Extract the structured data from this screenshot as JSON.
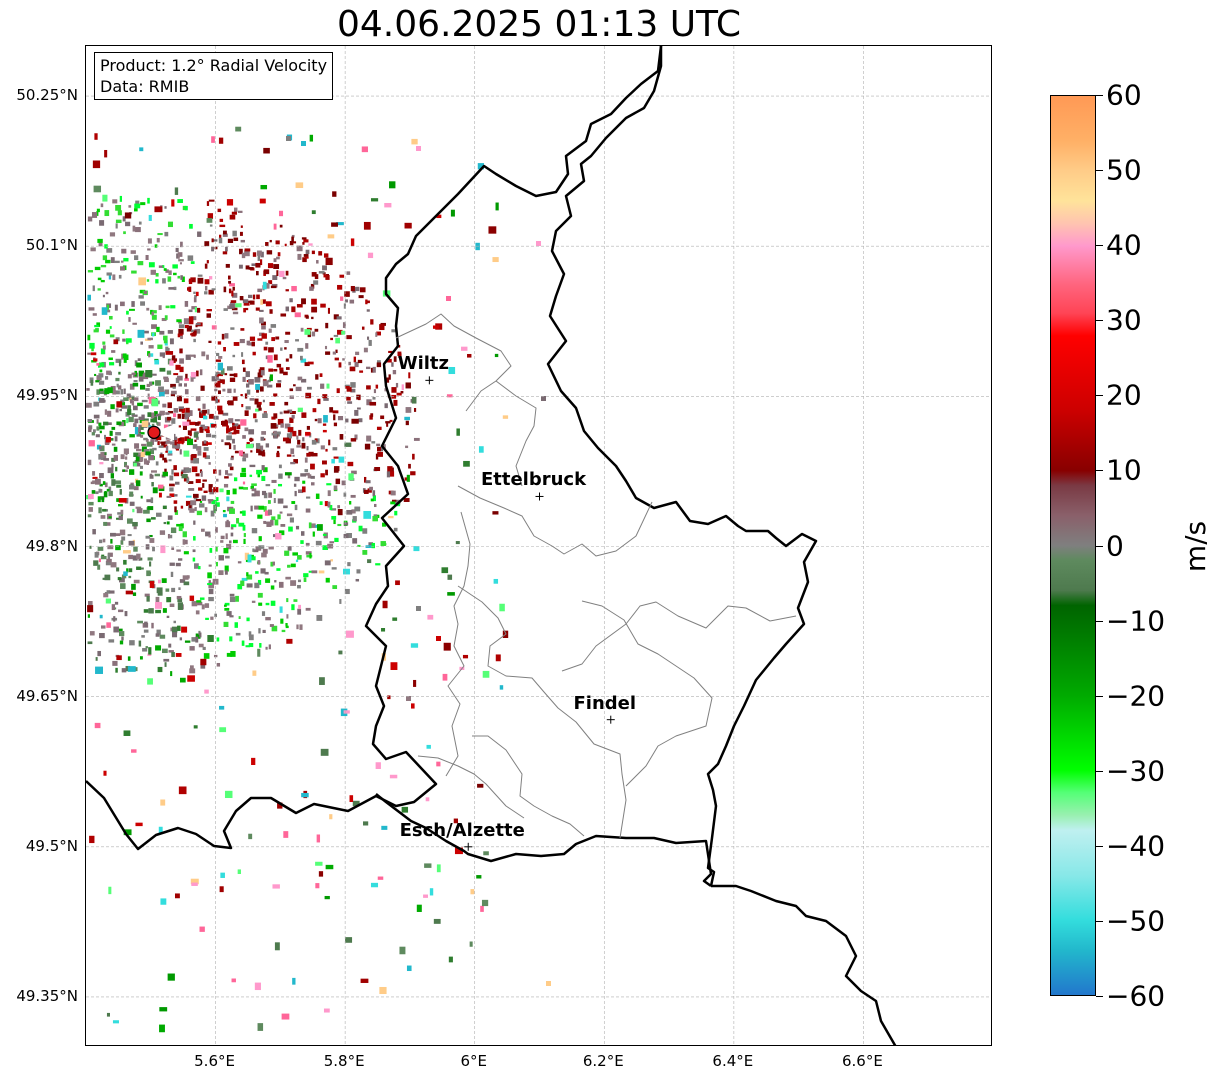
{
  "title": "04.06.2025 01:13 UTC",
  "info": {
    "product": "Product: 1.2° Radial Velocity",
    "data": "Data: RMIB"
  },
  "lat_ticks": [
    "50.25°N",
    "50.1°N",
    "49.95°N",
    "49.8°N",
    "49.65°N",
    "49.5°N",
    "49.35°N"
  ],
  "lon_ticks": [
    "5.6°E",
    "5.8°E",
    "6°E",
    "6.2°E",
    "6.4°E",
    "6.6°E"
  ],
  "cities": [
    {
      "name": "Wiltz",
      "lon": 5.93,
      "lat": 49.966
    },
    {
      "name": "Ettelbruck",
      "lon": 6.1,
      "lat": 49.85
    },
    {
      "name": "Findel",
      "lon": 6.21,
      "lat": 49.627
    },
    {
      "name": "Esch/Alzette",
      "lon": 5.99,
      "lat": 49.5
    }
  ],
  "radar_site": {
    "lon": 5.505,
    "lat": 49.914,
    "color": "#e31a1c"
  },
  "colorbar": {
    "unit": "m/s",
    "ticks": [
      "60",
      "50",
      "40",
      "30",
      "20",
      "10",
      "0",
      "−10",
      "−20",
      "−30",
      "−40",
      "−50",
      "−60"
    ],
    "min": -60,
    "max": 60,
    "stops": [
      {
        "v": 60,
        "c": "#ff9955"
      },
      {
        "v": 54,
        "c": "#ffb066"
      },
      {
        "v": 50,
        "c": "#ffcc88"
      },
      {
        "v": 46,
        "c": "#ffe39a"
      },
      {
        "v": 43,
        "c": "#ffc4b0"
      },
      {
        "v": 40,
        "c": "#ff99cc"
      },
      {
        "v": 35,
        "c": "#ff6680"
      },
      {
        "v": 31,
        "c": "#ff4455"
      },
      {
        "v": 28,
        "c": "#ff0000"
      },
      {
        "v": 18,
        "c": "#cc0000"
      },
      {
        "v": 10,
        "c": "#880000"
      },
      {
        "v": 8,
        "c": "#7a3a44"
      },
      {
        "v": 4,
        "c": "#8a606a"
      },
      {
        "v": 0,
        "c": "#7f7f7f"
      },
      {
        "v": -2,
        "c": "#5e8a5e"
      },
      {
        "v": -6,
        "c": "#4e7a4e"
      },
      {
        "v": -8,
        "c": "#006400"
      },
      {
        "v": -20,
        "c": "#00aa00"
      },
      {
        "v": -30,
        "c": "#00ff00"
      },
      {
        "v": -33,
        "c": "#55ff77"
      },
      {
        "v": -36,
        "c": "#99f0b0"
      },
      {
        "v": -38,
        "c": "#bff0f0"
      },
      {
        "v": -44,
        "c": "#88e8e8"
      },
      {
        "v": -50,
        "c": "#33dddd"
      },
      {
        "v": -54,
        "c": "#22b8cc"
      },
      {
        "v": -60,
        "c": "#2277cc"
      }
    ]
  },
  "map_extent": {
    "lon_min": 5.4,
    "lon_max": 6.8,
    "lat_min": 49.3,
    "lat_max": 50.3
  },
  "colors": {
    "border": "#000000",
    "cantons": "#808080",
    "grid": "#b0b0b0"
  }
}
